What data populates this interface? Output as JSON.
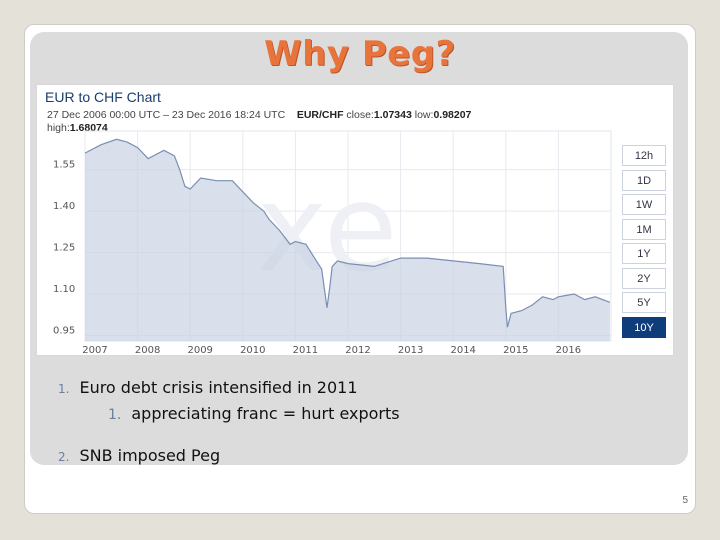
{
  "slide": {
    "title": "Why Peg?",
    "page_number": "5"
  },
  "chart": {
    "heading": "EUR to CHF Chart",
    "date_from": "27 Dec 2006 00:00 UTC",
    "date_to": "23 Dec 2016 18:24 UTC",
    "pair_label": "EUR/CHF",
    "close_label": "close:",
    "close_value": "1.07343",
    "low_label": "low:",
    "low_value": "0.98207",
    "high_label": "high:",
    "high_value": "1.68074",
    "watermark": "xe",
    "range_buttons": [
      "12h",
      "1D",
      "1W",
      "1M",
      "1Y",
      "2Y",
      "5Y",
      "10Y"
    ],
    "active_range": "10Y"
  },
  "bullets": [
    {
      "num": "1.",
      "text": "Euro debt crisis intensified in 2011",
      "level": 1
    },
    {
      "num": "1.",
      "text": "appreciating franc = hurt exports",
      "level": 2
    },
    {
      "num": "2.",
      "text": "SNB imposed Peg",
      "level": 1
    }
  ],
  "chart_data": {
    "type": "area",
    "title": "EUR to CHF Chart",
    "xlabel": "",
    "ylabel": "",
    "x_ticks": [
      "2007",
      "2008",
      "2009",
      "2010",
      "2011",
      "2012",
      "2013",
      "2014",
      "2015",
      "2016"
    ],
    "y_ticks": [
      0.95,
      1.1,
      1.25,
      1.4,
      1.55
    ],
    "ylim": [
      0.93,
      1.69
    ],
    "xlim": [
      2007.0,
      2017.0
    ],
    "grid": true,
    "series": [
      {
        "values": [
          [
            2007.0,
            1.61
          ],
          [
            2007.3,
            1.64
          ],
          [
            2007.6,
            1.66
          ],
          [
            2007.8,
            1.65
          ],
          [
            2008.0,
            1.63
          ],
          [
            2008.2,
            1.59
          ],
          [
            2008.5,
            1.62
          ],
          [
            2008.7,
            1.6
          ],
          [
            2008.8,
            1.55
          ],
          [
            2008.9,
            1.49
          ],
          [
            2009.0,
            1.48
          ],
          [
            2009.2,
            1.52
          ],
          [
            2009.5,
            1.51
          ],
          [
            2009.8,
            1.51
          ],
          [
            2010.0,
            1.47
          ],
          [
            2010.2,
            1.43
          ],
          [
            2010.4,
            1.4
          ],
          [
            2010.5,
            1.37
          ],
          [
            2010.7,
            1.33
          ],
          [
            2010.9,
            1.28
          ],
          [
            2011.0,
            1.29
          ],
          [
            2011.2,
            1.28
          ],
          [
            2011.4,
            1.22
          ],
          [
            2011.5,
            1.19
          ],
          [
            2011.6,
            1.05
          ],
          [
            2011.65,
            1.12
          ],
          [
            2011.7,
            1.2
          ],
          [
            2011.8,
            1.22
          ],
          [
            2012.0,
            1.21
          ],
          [
            2012.5,
            1.2
          ],
          [
            2013.0,
            1.23
          ],
          [
            2013.5,
            1.23
          ],
          [
            2014.0,
            1.22
          ],
          [
            2014.5,
            1.21
          ],
          [
            2014.95,
            1.2
          ],
          [
            2015.0,
            1.05
          ],
          [
            2015.03,
            0.98
          ],
          [
            2015.1,
            1.03
          ],
          [
            2015.3,
            1.04
          ],
          [
            2015.5,
            1.06
          ],
          [
            2015.7,
            1.09
          ],
          [
            2015.9,
            1.08
          ],
          [
            2016.0,
            1.09
          ],
          [
            2016.3,
            1.1
          ],
          [
            2016.5,
            1.08
          ],
          [
            2016.7,
            1.09
          ],
          [
            2016.98,
            1.07
          ]
        ]
      }
    ]
  }
}
